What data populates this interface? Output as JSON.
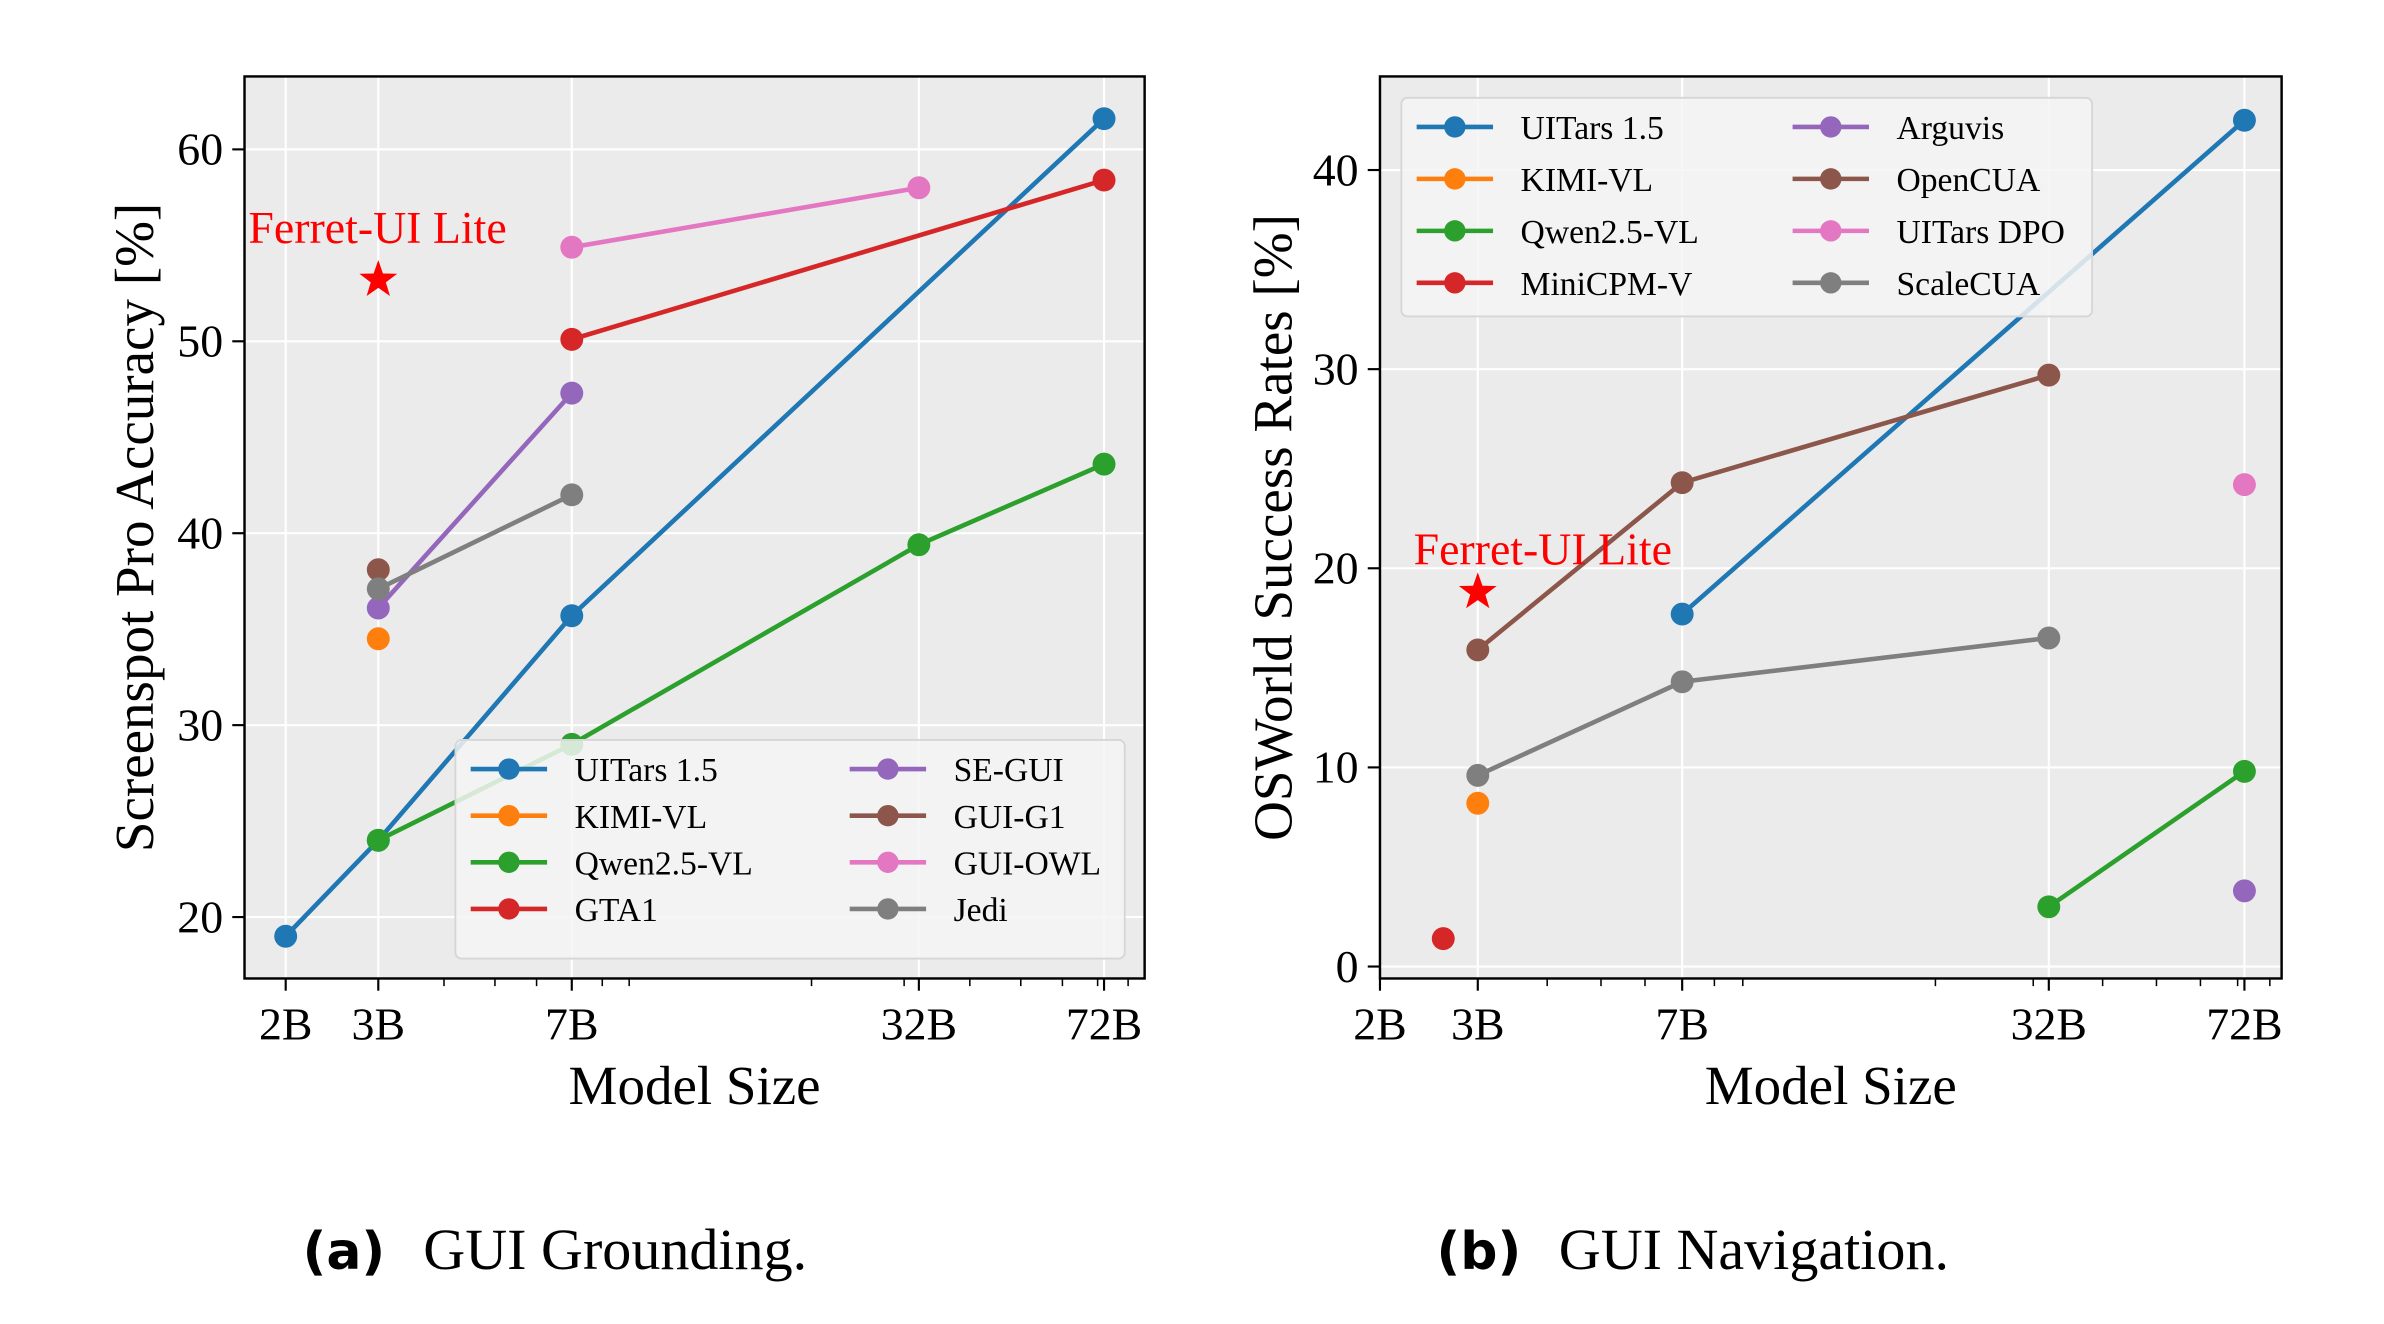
{
  "captions": {
    "a_tag": "(a)",
    "a_text": "GUI Grounding.",
    "b_tag": "(b)",
    "b_text": "GUI Navigation."
  },
  "chart_data": [
    {
      "id": "grounding",
      "type": "line",
      "title": "",
      "xlabel": "Model Size",
      "ylabel": "Screenspot Pro Accuracy [%]",
      "xscale": "log",
      "xlim": [
        1.67,
        86
      ],
      "ylim": [
        16.8,
        63.8
      ],
      "xticks": [
        2,
        3,
        7,
        32,
        72
      ],
      "xtick_labels": [
        "2B",
        "3B",
        "7B",
        "32B",
        "72B"
      ],
      "yticks": [
        20,
        30,
        40,
        50,
        60
      ],
      "ytick_labels": [
        "20",
        "30",
        "40",
        "50",
        "60"
      ],
      "grid": true,
      "legend_position": "lower-right",
      "legend_columns": 2,
      "series": [
        {
          "name": "UITars 1.5",
          "color": "#1f77b4",
          "points": [
            [
              2,
              19.0
            ],
            [
              3,
              24.0
            ],
            [
              7,
              35.7
            ],
            [
              72,
              61.6
            ]
          ]
        },
        {
          "name": "KIMI-VL",
          "color": "#ff7f0e",
          "points": [
            [
              3,
              34.5
            ]
          ]
        },
        {
          "name": "Qwen2.5-VL",
          "color": "#2ca02c",
          "points": [
            [
              3,
              24.0
            ],
            [
              7,
              29.0
            ],
            [
              32,
              39.4
            ],
            [
              72,
              43.6
            ]
          ]
        },
        {
          "name": "GTA1",
          "color": "#d62728",
          "points": [
            [
              7,
              50.1
            ],
            [
              72,
              58.4
            ]
          ]
        },
        {
          "name": "SE-GUI",
          "color": "#9467bd",
          "points": [
            [
              3,
              36.1
            ],
            [
              7,
              47.3
            ]
          ]
        },
        {
          "name": "GUI-G1",
          "color": "#8c564b",
          "points": [
            [
              3,
              38.1
            ]
          ]
        },
        {
          "name": "GUI-OWL",
          "color": "#e377c2",
          "points": [
            [
              7,
              54.9
            ],
            [
              32,
              58.0
            ]
          ]
        },
        {
          "name": "Jedi",
          "color": "#7f7f7f",
          "points": [
            [
              3,
              37.1
            ],
            [
              7,
              42.0
            ]
          ]
        }
      ],
      "highlight": {
        "label": "Ferret-UI Lite",
        "x": 3,
        "y": 53.2,
        "color": "#ff0000",
        "marker": "star"
      }
    },
    {
      "id": "navigation",
      "type": "line",
      "title": "",
      "xlabel": "Model Size",
      "ylabel": "OSWorld Success Rates [%]",
      "xscale": "log",
      "xlim": [
        2,
        84
      ],
      "ylim": [
        -0.6,
        44.7
      ],
      "xticks": [
        2,
        3,
        7,
        32,
        72
      ],
      "xtick_labels": [
        "2B",
        "3B",
        "7B",
        "32B",
        "72B"
      ],
      "yticks": [
        0,
        10,
        20,
        30,
        40
      ],
      "ytick_labels": [
        "0",
        "10",
        "20",
        "30",
        "40"
      ],
      "grid": true,
      "legend_position": "upper-left",
      "legend_columns": 2,
      "series": [
        {
          "name": "UITars 1.5",
          "color": "#1f77b4",
          "points": [
            [
              7,
              17.7
            ],
            [
              72,
              42.5
            ]
          ]
        },
        {
          "name": "KIMI-VL",
          "color": "#ff7f0e",
          "points": [
            [
              3,
              8.2
            ]
          ]
        },
        {
          "name": "Qwen2.5-VL",
          "color": "#2ca02c",
          "points": [
            [
              32,
              3.0
            ],
            [
              72,
              9.8
            ]
          ]
        },
        {
          "name": "MiniCPM-V",
          "color": "#d62728",
          "points": [
            [
              2.6,
              1.4
            ]
          ]
        },
        {
          "name": "Arguvis",
          "color": "#9467bd",
          "points": [
            [
              72,
              3.8
            ]
          ]
        },
        {
          "name": "OpenCUA",
          "color": "#8c564b",
          "points": [
            [
              3,
              15.9
            ],
            [
              7,
              24.3
            ],
            [
              32,
              29.7
            ]
          ]
        },
        {
          "name": "UITars DPO",
          "color": "#e377c2",
          "points": [
            [
              72,
              24.2
            ]
          ]
        },
        {
          "name": "ScaleCUA",
          "color": "#7f7f7f",
          "points": [
            [
              3,
              9.6
            ],
            [
              7,
              14.3
            ],
            [
              32,
              16.5
            ]
          ]
        }
      ],
      "highlight": {
        "label": "Ferret-UI Lite",
        "x": 3,
        "y": 18.8,
        "color": "#ff0000",
        "marker": "star"
      }
    }
  ]
}
